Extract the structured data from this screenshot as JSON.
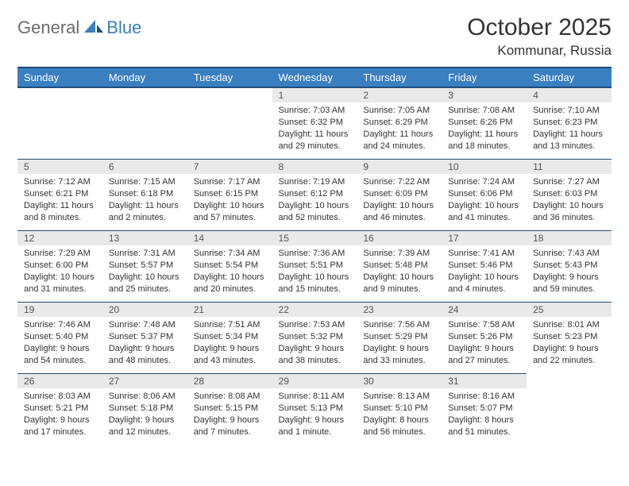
{
  "logo": {
    "general": "General",
    "blue": "Blue"
  },
  "title": "October 2025",
  "location": "Kommunar, Russia",
  "colors": {
    "header_bg": "#3a7fc0",
    "header_border": "#1f4f7a",
    "daynum_bg": "#e9e9e9",
    "text": "#333333"
  },
  "day_headers": [
    "Sunday",
    "Monday",
    "Tuesday",
    "Wednesday",
    "Thursday",
    "Friday",
    "Saturday"
  ],
  "weeks": [
    [
      {
        "empty": true
      },
      {
        "empty": true
      },
      {
        "empty": true
      },
      {
        "n": "1",
        "sr": "7:03 AM",
        "ss": "6:32 PM",
        "dl": "11 hours and 29 minutes."
      },
      {
        "n": "2",
        "sr": "7:05 AM",
        "ss": "6:29 PM",
        "dl": "11 hours and 24 minutes."
      },
      {
        "n": "3",
        "sr": "7:08 AM",
        "ss": "6:26 PM",
        "dl": "11 hours and 18 minutes."
      },
      {
        "n": "4",
        "sr": "7:10 AM",
        "ss": "6:23 PM",
        "dl": "11 hours and 13 minutes."
      }
    ],
    [
      {
        "n": "5",
        "sr": "7:12 AM",
        "ss": "6:21 PM",
        "dl": "11 hours and 8 minutes."
      },
      {
        "n": "6",
        "sr": "7:15 AM",
        "ss": "6:18 PM",
        "dl": "11 hours and 2 minutes."
      },
      {
        "n": "7",
        "sr": "7:17 AM",
        "ss": "6:15 PM",
        "dl": "10 hours and 57 minutes."
      },
      {
        "n": "8",
        "sr": "7:19 AM",
        "ss": "6:12 PM",
        "dl": "10 hours and 52 minutes."
      },
      {
        "n": "9",
        "sr": "7:22 AM",
        "ss": "6:09 PM",
        "dl": "10 hours and 46 minutes."
      },
      {
        "n": "10",
        "sr": "7:24 AM",
        "ss": "6:06 PM",
        "dl": "10 hours and 41 minutes."
      },
      {
        "n": "11",
        "sr": "7:27 AM",
        "ss": "6:03 PM",
        "dl": "10 hours and 36 minutes."
      }
    ],
    [
      {
        "n": "12",
        "sr": "7:29 AM",
        "ss": "6:00 PM",
        "dl": "10 hours and 31 minutes."
      },
      {
        "n": "13",
        "sr": "7:31 AM",
        "ss": "5:57 PM",
        "dl": "10 hours and 25 minutes."
      },
      {
        "n": "14",
        "sr": "7:34 AM",
        "ss": "5:54 PM",
        "dl": "10 hours and 20 minutes."
      },
      {
        "n": "15",
        "sr": "7:36 AM",
        "ss": "5:51 PM",
        "dl": "10 hours and 15 minutes."
      },
      {
        "n": "16",
        "sr": "7:39 AM",
        "ss": "5:48 PM",
        "dl": "10 hours and 9 minutes."
      },
      {
        "n": "17",
        "sr": "7:41 AM",
        "ss": "5:46 PM",
        "dl": "10 hours and 4 minutes."
      },
      {
        "n": "18",
        "sr": "7:43 AM",
        "ss": "5:43 PM",
        "dl": "9 hours and 59 minutes."
      }
    ],
    [
      {
        "n": "19",
        "sr": "7:46 AM",
        "ss": "5:40 PM",
        "dl": "9 hours and 54 minutes."
      },
      {
        "n": "20",
        "sr": "7:48 AM",
        "ss": "5:37 PM",
        "dl": "9 hours and 48 minutes."
      },
      {
        "n": "21",
        "sr": "7:51 AM",
        "ss": "5:34 PM",
        "dl": "9 hours and 43 minutes."
      },
      {
        "n": "22",
        "sr": "7:53 AM",
        "ss": "5:32 PM",
        "dl": "9 hours and 38 minutes."
      },
      {
        "n": "23",
        "sr": "7:56 AM",
        "ss": "5:29 PM",
        "dl": "9 hours and 33 minutes."
      },
      {
        "n": "24",
        "sr": "7:58 AM",
        "ss": "5:26 PM",
        "dl": "9 hours and 27 minutes."
      },
      {
        "n": "25",
        "sr": "8:01 AM",
        "ss": "5:23 PM",
        "dl": "9 hours and 22 minutes."
      }
    ],
    [
      {
        "n": "26",
        "sr": "8:03 AM",
        "ss": "5:21 PM",
        "dl": "9 hours and 17 minutes."
      },
      {
        "n": "27",
        "sr": "8:06 AM",
        "ss": "5:18 PM",
        "dl": "9 hours and 12 minutes."
      },
      {
        "n": "28",
        "sr": "8:08 AM",
        "ss": "5:15 PM",
        "dl": "9 hours and 7 minutes."
      },
      {
        "n": "29",
        "sr": "8:11 AM",
        "ss": "5:13 PM",
        "dl": "9 hours and 1 minute."
      },
      {
        "n": "30",
        "sr": "8:13 AM",
        "ss": "5:10 PM",
        "dl": "8 hours and 56 minutes."
      },
      {
        "n": "31",
        "sr": "8:16 AM",
        "ss": "5:07 PM",
        "dl": "8 hours and 51 minutes."
      },
      {
        "empty": true
      }
    ]
  ],
  "labels": {
    "sunrise": "Sunrise:",
    "sunset": "Sunset:",
    "daylight": "Daylight:"
  }
}
